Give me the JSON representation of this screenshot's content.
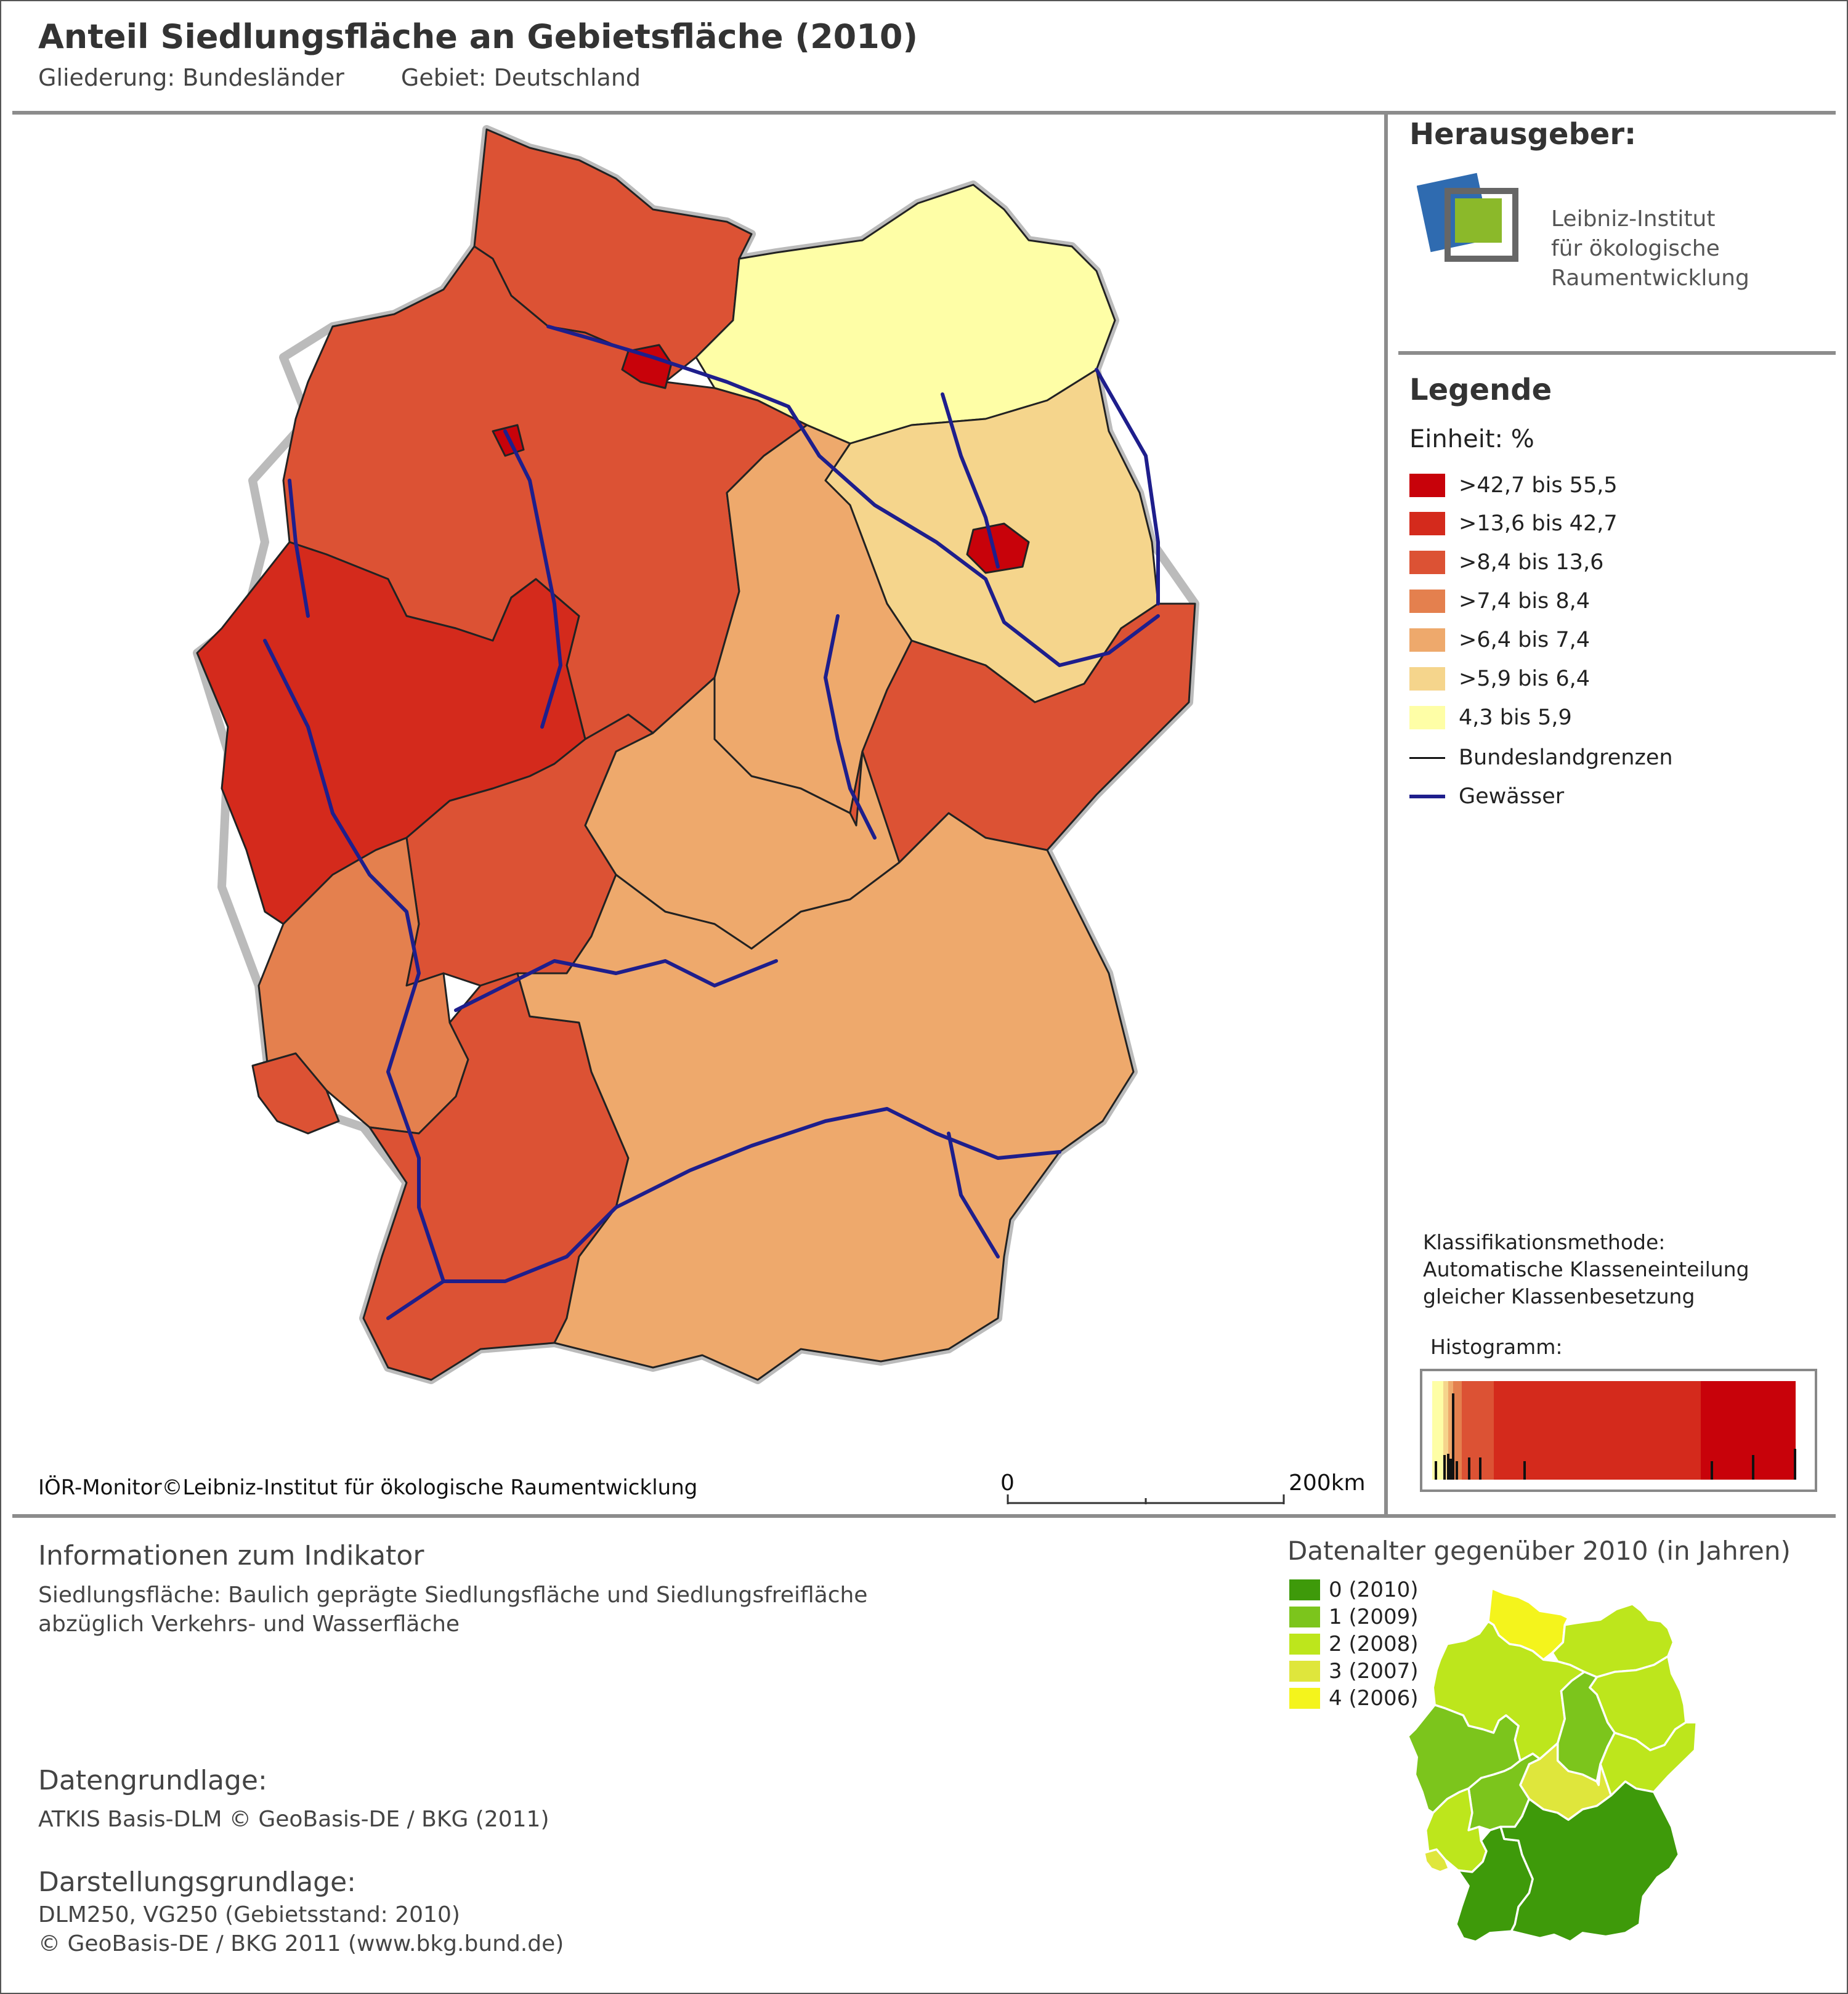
{
  "header": {
    "title": "Anteil Siedlungsfläche an Gebietsfläche (2010)",
    "gliederung": "Gliederung: Bundesländer",
    "gebiet": "Gebiet: Deutschland"
  },
  "publisher": {
    "heading": "Herausgeber:",
    "name_line1": "Leibniz-Institut",
    "name_line2": "für ökologische",
    "name_line3": "Raumentwicklung",
    "logo_colors": {
      "blue": "#2f6bb0",
      "green": "#8bb92a",
      "frame": "#666666"
    }
  },
  "legend": {
    "heading": "Legende",
    "unit": "Einheit: %",
    "classes": [
      {
        "label": ">42,7 bis 55,5",
        "color": "#c8020a"
      },
      {
        "label": ">13,6 bis 42,7",
        "color": "#d42a1c"
      },
      {
        "label": ">8,4 bis 13,6",
        "color": "#dc5234"
      },
      {
        "label": ">7,4 bis 8,4",
        "color": "#e4804e"
      },
      {
        "label": ">6,4 bis 7,4",
        "color": "#eea96c"
      },
      {
        "label": ">5,9 bis 6,4",
        "color": "#f5d58c"
      },
      {
        "label": "4,3 bis 5,9",
        "color": "#fefea6"
      }
    ],
    "boundary_label": "Bundeslandgrenzen",
    "water_label": "Gewässer",
    "water_color": "#1e1e8c"
  },
  "classification": {
    "line1": "Klassifikationsmethode:",
    "line2": "Automatische Klasseneinteilung",
    "line3": "gleicher Klassenbesetzung",
    "histogram_label": "Histogramm:"
  },
  "map": {
    "copyright": "IÖR-Monitor©Leibniz-Institut für ökologische Raumentwicklung",
    "scale_start": "0",
    "scale_end": "200km"
  },
  "info": {
    "heading": "Informationen zum Indikator",
    "text_line1": "Siedlungsfläche: Baulich geprägte Siedlungsfläche und Siedlungsfreifläche",
    "text_line2": "abzüglich Verkehrs- und Wasserfläche",
    "data_heading": "Datengrundlage:",
    "data_text": "ATKIS Basis-DLM © GeoBasis-DE / BKG (2011)",
    "repr_heading": "Darstellungsgrundlage:",
    "repr_line1": "DLM250, VG250 (Gebietsstand: 2010)",
    "repr_line2": "© GeoBasis-DE / BKG 2011 (www.bkg.bund.de)"
  },
  "data_age": {
    "heading": "Datenalter gegenüber 2010 (in Jahren)",
    "classes": [
      {
        "label": "0 (2010)",
        "color": "#3e9a0a"
      },
      {
        "label": "1 (2009)",
        "color": "#7cc51c"
      },
      {
        "label": "2 (2008)",
        "color": "#bde61c"
      },
      {
        "label": "3 (2007)",
        "color": "#dfe63c"
      },
      {
        "label": "4 (2006)",
        "color": "#f4f41c"
      }
    ]
  }
}
